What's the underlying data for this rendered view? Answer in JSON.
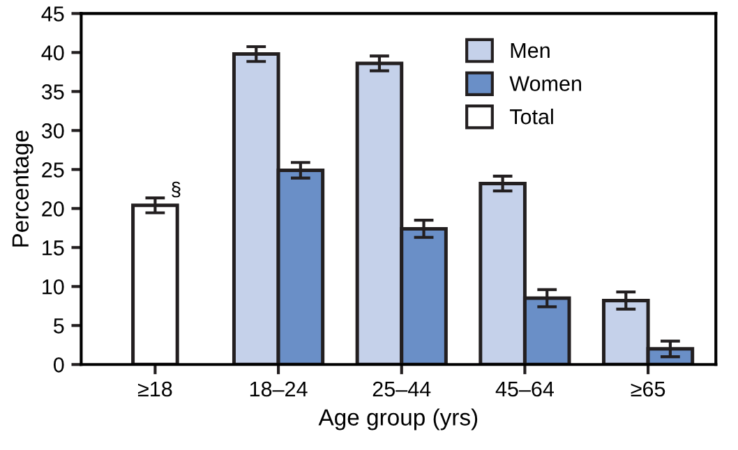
{
  "chart_data": {
    "type": "bar",
    "xlabel": "Age group (yrs)",
    "ylabel": "Percentage",
    "categories": [
      "≥18",
      "18–24",
      "25–44",
      "45–64",
      "≥65"
    ],
    "series": [
      {
        "name": "Men",
        "color": "#c5d1ea",
        "values": [
          null,
          39.8,
          38.6,
          23.2,
          8.2
        ],
        "errors": [
          null,
          0.95,
          0.95,
          0.95,
          1.1
        ]
      },
      {
        "name": "Women",
        "color": "#6a8fc7",
        "values": [
          null,
          24.9,
          17.4,
          8.5,
          2.0
        ],
        "errors": [
          null,
          1.0,
          1.1,
          1.1,
          1.0
        ]
      },
      {
        "name": "Total",
        "color": "#ffffff",
        "values": [
          20.4,
          null,
          null,
          null,
          null
        ],
        "errors": [
          0.95,
          null,
          null,
          null,
          null
        ]
      }
    ],
    "ylim": [
      0,
      45
    ],
    "yticks": [
      0,
      5,
      10,
      15,
      20,
      25,
      30,
      35,
      40,
      45
    ],
    "annotations": [
      {
        "text": "§",
        "x": "≥18",
        "y": 20.4
      }
    ],
    "legend": "top right",
    "grid": false
  }
}
